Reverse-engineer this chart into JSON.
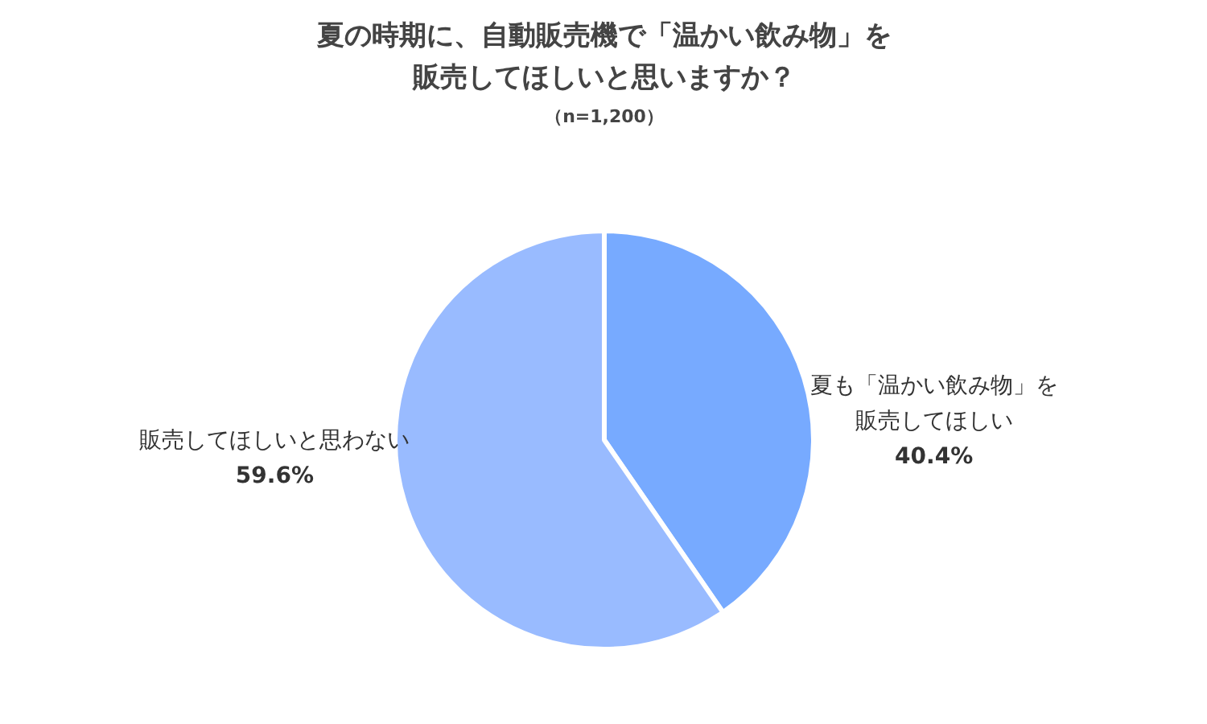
{
  "chart_data": {
    "type": "pie",
    "title": "夏の時期に、自動販売機で「温かい飲み物」を販売してほしいと思いますか？",
    "subtitle": "（n=1,200）",
    "categories": [
      "夏も「温かい飲み物」を販売してほしい",
      "販売してほしいと思わない"
    ],
    "values": [
      40.4,
      59.6
    ],
    "colors": [
      "#77aaff",
      "#99bbff"
    ],
    "value_labels": [
      "40.4%",
      "59.6%"
    ]
  }
}
